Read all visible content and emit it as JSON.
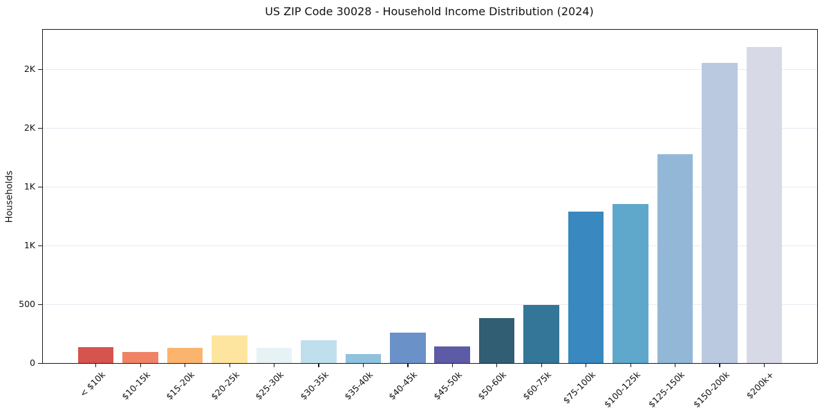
{
  "chart_data": {
    "type": "bar",
    "title": "US ZIP Code 30028 - Household Income Distribution (2024)",
    "xlabel": "",
    "ylabel": "Households",
    "categories": [
      "< $10k",
      "$10-15k",
      "$15-20k",
      "$20-25k",
      "$25-30k",
      "$30-35k",
      "$35-40k",
      "$40-45k",
      "$45-50k",
      "$50-60k",
      "$60-75k",
      "$75-100k",
      "$100-125k",
      "$125-150k",
      "$150-200k",
      "$200k+"
    ],
    "values": [
      136,
      95,
      131,
      235,
      128,
      195,
      78,
      258,
      140,
      384,
      495,
      1290,
      1353,
      1779,
      2550,
      2687
    ],
    "bar_colors": [
      "#d6534e",
      "#f08365",
      "#fbb46e",
      "#fde5a0",
      "#e7f2f5",
      "#c0dfec",
      "#90c1dd",
      "#6b92c8",
      "#5d5aa8",
      "#315e73",
      "#337697",
      "#3a88c0",
      "#60a7cc",
      "#93b8d7",
      "#bac9e0",
      "#d7d9e6"
    ],
    "yticks": {
      "values": [
        0,
        500,
        1000,
        1500,
        2000,
        2500
      ],
      "labels": [
        "0",
        "500",
        "1K",
        "1K",
        "2K",
        "2K"
      ]
    },
    "ylim": [
      0,
      2835
    ],
    "grid": "horizontal",
    "gridline_color": "#e9e9f2",
    "spine_color": "#1a1a1a",
    "background": "#ffffff",
    "legend": "none"
  }
}
